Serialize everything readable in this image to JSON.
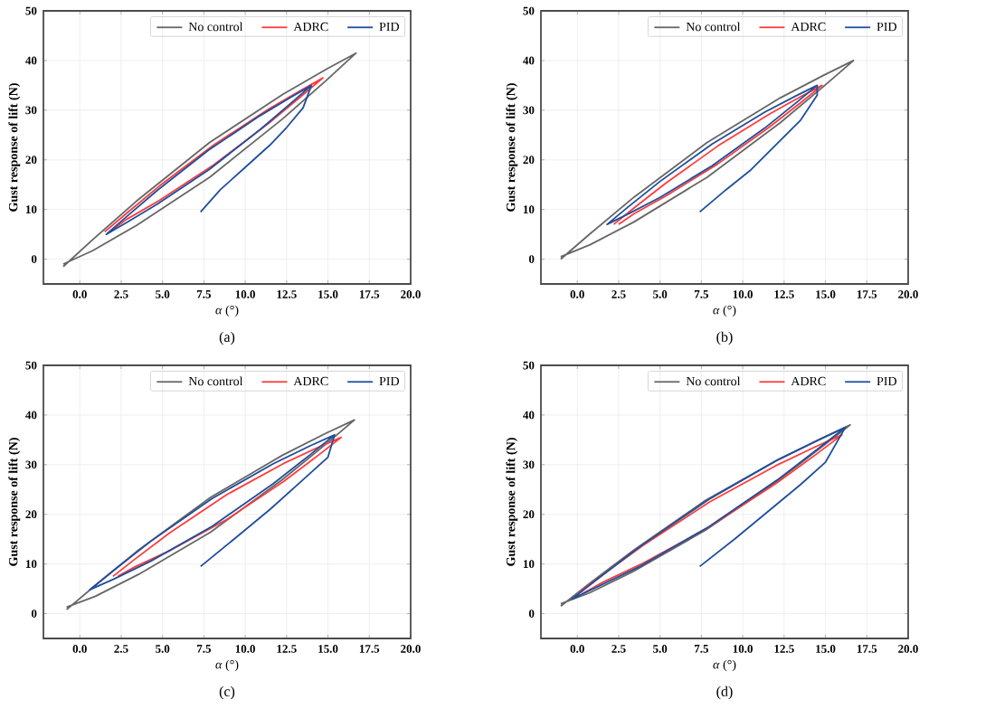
{
  "chart_data": [
    {
      "type": "line",
      "xlabel": "*α* (°)",
      "ylabel": "Gust response of lift (N)",
      "annotations": [
        "(a)"
      ],
      "xlim": [
        -2.2,
        20
      ],
      "ylim": [
        -5,
        50
      ],
      "xticks": [
        {
          "value": 0,
          "label": "0.0"
        },
        {
          "value": 2.5,
          "label": "2.5"
        },
        {
          "value": 5,
          "label": "5.0"
        },
        {
          "value": 7.5,
          "label": "7.5"
        },
        {
          "value": 10,
          "label": "10.0"
        },
        {
          "value": 12.5,
          "label": "12.5"
        },
        {
          "value": 15,
          "label": "15.0"
        },
        {
          "value": 17.5,
          "label": "17.5"
        },
        {
          "value": 20,
          "label": "20.0"
        }
      ],
      "yticks": [
        0,
        10,
        20,
        30,
        40,
        50
      ],
      "grid": true,
      "legend": "top right",
      "series": [
        {
          "name": "No control",
          "color": "#666666",
          "x": [
            -1,
            0.77,
            3.43,
            7.85,
            12.28,
            14.93,
            16.7,
            14.93,
            12.28,
            7.85,
            3.43,
            0.77,
            -1
          ],
          "values": [
            -1.5,
            3.9,
            11.7,
            23.5,
            33.2,
            38.3,
            41.5,
            36.1,
            28.3,
            16.5,
            6.8,
            1.7,
            -1
          ]
        },
        {
          "name": "ADRC",
          "color": "#ff3b3b",
          "x": [
            1.5,
            2.82,
            4.8,
            8.1,
            11.4,
            13.38,
            14.7,
            13.38,
            11.4,
            8.1,
            4.8,
            2.82,
            1.8
          ],
          "values": [
            5.5,
            9.2,
            14.7,
            23,
            30.2,
            34.0,
            36.5,
            32.8,
            27.3,
            19,
            11.8,
            8.0,
            5.5
          ]
        },
        {
          "name": "PID",
          "color": "#1f4e9c",
          "x": [
            7.3,
            8.5,
            10,
            11.5,
            12.5,
            13.5,
            14,
            12.76,
            10.9,
            7.8,
            4.7,
            2.84,
            1.6,
            2.84,
            4.7,
            7.8,
            10.9,
            12.76,
            14
          ],
          "values": [
            9.5,
            14,
            18.5,
            23,
            26.5,
            30.5,
            35,
            32.6,
            28.9,
            22,
            13.9,
            8.6,
            5,
            7.4,
            11.1,
            18,
            26.1,
            31.4,
            35
          ]
        }
      ]
    },
    {
      "type": "line",
      "xlabel": "*α* (°)",
      "ylabel": "Gust response of lift (N)",
      "annotations": [
        "(b)"
      ],
      "xlim": [
        -2.2,
        20
      ],
      "ylim": [
        -5,
        50
      ],
      "xticks": [
        {
          "value": 0,
          "label": "0.0"
        },
        {
          "value": 2.5,
          "label": "2.5"
        },
        {
          "value": 5,
          "label": "5.0"
        },
        {
          "value": 7.5,
          "label": "7.5"
        },
        {
          "value": 10,
          "label": "10.0"
        },
        {
          "value": 12.5,
          "label": "12.5"
        },
        {
          "value": 15,
          "label": "15.0"
        },
        {
          "value": 17.5,
          "label": "17.5"
        },
        {
          "value": 20,
          "label": "20.0"
        }
      ],
      "yticks": [
        0,
        10,
        20,
        30,
        40,
        50
      ],
      "grid": true,
      "legend": "top right",
      "series": [
        {
          "name": "No control",
          "color": "#666666",
          "x": [
            -1,
            0.77,
            3.43,
            7.85,
            12.28,
            14.93,
            16.7,
            14.93,
            12.28,
            7.85,
            3.43,
            0.77,
            -1
          ],
          "values": [
            0,
            5.1,
            12.5,
            23.5,
            32.5,
            37.1,
            40,
            34.9,
            27.5,
            16.5,
            7.5,
            2.9,
            0.5
          ]
        },
        {
          "name": "ADRC",
          "color": "#ff3b3b",
          "x": [
            2.2,
            3.46,
            5.35,
            8.5,
            11.65,
            13.54,
            14.8,
            13.54,
            11.65,
            8.5,
            5.35,
            3.46,
            2.5
          ],
          "values": [
            7,
            10.4,
            15.3,
            22.8,
            29.3,
            32.8,
            35,
            31.6,
            26.7,
            19.2,
            12.7,
            9.2,
            7
          ]
        },
        {
          "name": "PID",
          "color": "#1f4e9c",
          "x": [
            7.4,
            9,
            10.5,
            12,
            13.5,
            14.5,
            14.5,
            13.23,
            11.33,
            8.15,
            4.98,
            3.07,
            1.8,
            3.07,
            4.98,
            8.15,
            11.33,
            13.23,
            14.5
          ],
          "values": [
            9.5,
            14,
            18,
            23,
            28,
            33,
            35,
            32.9,
            29.6,
            23.2,
            15.6,
            10.5,
            7,
            9.1,
            12.4,
            18.8,
            26.4,
            31.5,
            35
          ]
        }
      ]
    },
    {
      "type": "line",
      "xlabel": "*α* (°)",
      "ylabel": "Gust response of lift (N)",
      "annotations": [
        "(c)"
      ],
      "xlim": [
        -2.2,
        20
      ],
      "ylim": [
        -5,
        50
      ],
      "xticks": [
        {
          "value": 0,
          "label": "0.0"
        },
        {
          "value": 2.5,
          "label": "2.5"
        },
        {
          "value": 5,
          "label": "5.0"
        },
        {
          "value": 7.5,
          "label": "7.5"
        },
        {
          "value": 10,
          "label": "10.0"
        },
        {
          "value": 12.5,
          "label": "12.5"
        },
        {
          "value": 15,
          "label": "15.0"
        },
        {
          "value": 17.5,
          "label": "17.5"
        },
        {
          "value": 20,
          "label": "20.0"
        }
      ],
      "yticks": [
        0,
        10,
        20,
        30,
        40,
        50
      ],
      "grid": true,
      "legend": "top right",
      "series": [
        {
          "name": "No control",
          "color": "#666666",
          "x": [
            -0.8,
            0.94,
            3.55,
            7.9,
            12.25,
            14.86,
            16.6,
            14.86,
            12.25,
            7.9,
            3.55,
            0.94,
            -0.8
          ],
          "values": [
            0.8,
            5.7,
            12.8,
            23.4,
            31.9,
            36.3,
            39,
            34.1,
            27.0,
            16.4,
            7.9,
            3.5,
            1.3
          ]
        },
        {
          "name": "ADRC",
          "color": "#ff3b3b",
          "x": [
            2,
            3.38,
            5.45,
            8.9,
            12.35,
            14.42,
            15.8,
            14.42,
            12.35,
            8.9,
            5.45,
            3.38,
            2.3
          ],
          "values": [
            7.5,
            11.1,
            16.3,
            24,
            30.3,
            33.5,
            35.5,
            31.9,
            26.7,
            19,
            12.7,
            9.5,
            7.5
          ]
        },
        {
          "name": "PID",
          "color": "#1f4e9c",
          "x": [
            7.3,
            9.5,
            11.5,
            13.5,
            15,
            15.4,
            13.92,
            11.7,
            8,
            4.3,
            2.08,
            0.6,
            2.08,
            4.3,
            8,
            11.7,
            13.92,
            15.4
          ],
          "values": [
            9.5,
            15.5,
            21,
            27,
            31.5,
            36,
            33.8,
            30.2,
            23.2,
            14.6,
            8.8,
            4.8,
            7.0,
            10.6,
            17.6,
            26.2,
            32.0,
            36
          ]
        }
      ]
    },
    {
      "type": "line",
      "xlabel": "*α* (°)",
      "ylabel": "Gust response of lift (N)",
      "annotations": [
        "(d)"
      ],
      "xlim": [
        -2.2,
        20
      ],
      "ylim": [
        -5,
        50
      ],
      "xticks": [
        {
          "value": 0,
          "label": "0.0"
        },
        {
          "value": 2.5,
          "label": "2.5"
        },
        {
          "value": 5,
          "label": "5.0"
        },
        {
          "value": 7.5,
          "label": "7.5"
        },
        {
          "value": 10,
          "label": "10.0"
        },
        {
          "value": 12.5,
          "label": "12.5"
        },
        {
          "value": 15,
          "label": "15.0"
        },
        {
          "value": 17.5,
          "label": "17.5"
        },
        {
          "value": 20,
          "label": "20.0"
        }
      ],
      "yticks": [
        0,
        10,
        20,
        30,
        40,
        50
      ],
      "grid": true,
      "legend": "top right",
      "series": [
        {
          "name": "No control",
          "color": "#666666",
          "x": [
            -1,
            0.75,
            3.38,
            7.75,
            12.13,
            14.75,
            16.5,
            14.75,
            12.13,
            7.75,
            3.38,
            0.75,
            -1
          ],
          "values": [
            1.5,
            6.1,
            12.7,
            22.8,
            31,
            35.3,
            38,
            33.5,
            26.8,
            16.8,
            8.5,
            4.2,
            2
          ]
        },
        {
          "name": "ADRC",
          "color": "#ff3b3b",
          "x": [
            0,
            1.6,
            4,
            8,
            12,
            14.4,
            16,
            14.4,
            12,
            8,
            4,
            1.6,
            0.3
          ],
          "values": [
            4,
            8,
            13.8,
            22.5,
            29.8,
            33.6,
            36,
            32,
            26.2,
            17.5,
            10.2,
            6.4,
            4
          ]
        },
        {
          "name": "PID",
          "color": "#1f4e9c",
          "x": [
            7.4,
            9.5,
            11.5,
            13.5,
            15,
            16.2,
            14.55,
            12.08,
            7.95,
            3.83,
            1.35,
            -0.3,
            1.35,
            3.83,
            7.95,
            12.08,
            14.55,
            16.2
          ],
          "values": [
            9.5,
            15,
            20.5,
            26,
            30.5,
            37.5,
            34.9,
            30.9,
            23,
            13.6,
            7.3,
            3,
            5.6,
            9.6,
            17.5,
            26.9,
            33.2,
            37.5
          ]
        }
      ]
    }
  ]
}
